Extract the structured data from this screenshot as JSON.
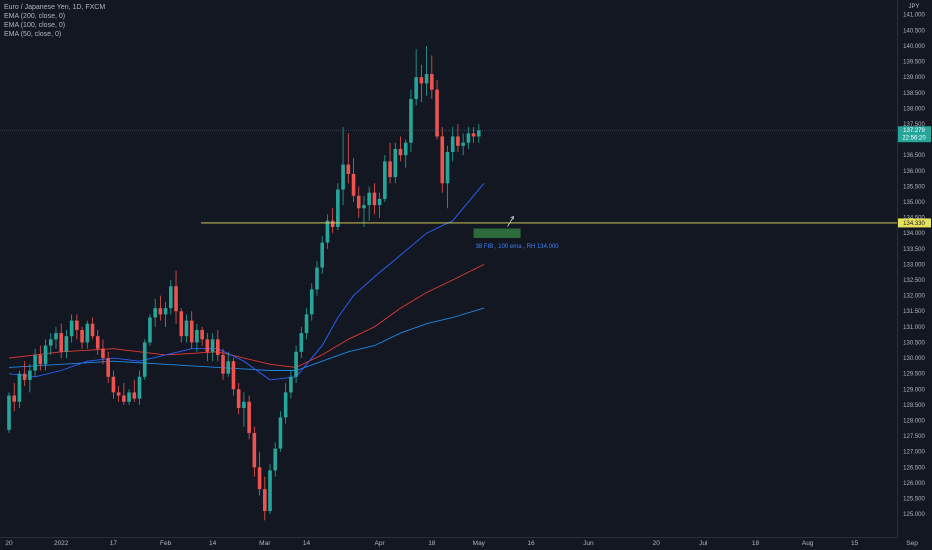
{
  "legend": {
    "symbol": "Euro / Japanese Yen, 1D, FXCM",
    "indicators": [
      "EMA (200, close, 0)",
      "EMA (100, close, 0)",
      "EMA (50, close, 0)"
    ]
  },
  "colors": {
    "background": "#131722",
    "up": "#26a69a",
    "down": "#ef5350",
    "ema50": "#2962ff",
    "ema100": "#e53935",
    "ema200": "#1e88e5",
    "level": "#e6e05a",
    "zone": "#2e6b3a",
    "annotation": "#3b82f6"
  },
  "chart_data": {
    "type": "candlestick",
    "title": "Euro / Japanese Yen, 1D, FXCM",
    "currency": "JPY",
    "ylim": [
      124.6,
      141.2
    ],
    "y_ticks": [
      "141.000",
      "140.500",
      "140.000",
      "139.500",
      "139.000",
      "138.500",
      "138.000",
      "137.500",
      "137.000",
      "136.500",
      "136.000",
      "135.500",
      "135.000",
      "134.500",
      "134.000",
      "133.500",
      "133.000",
      "132.500",
      "132.000",
      "131.500",
      "131.000",
      "130.500",
      "130.000",
      "129.500",
      "129.000",
      "128.500",
      "128.000",
      "127.500",
      "127.000",
      "126.500",
      "126.000",
      "125.500",
      "125.000"
    ],
    "x_ticks": [
      {
        "label": "20",
        "i": 0
      },
      {
        "label": "2022",
        "i": 10
      },
      {
        "label": "17",
        "i": 20
      },
      {
        "label": "Feb",
        "i": 30
      },
      {
        "label": "14",
        "i": 39
      },
      {
        "label": "Mar",
        "i": 49
      },
      {
        "label": "14",
        "i": 57
      },
      {
        "label": "Apr",
        "i": 71
      },
      {
        "label": "18",
        "i": 81
      },
      {
        "label": "May",
        "i": 90
      },
      {
        "label": "16",
        "i": 100
      },
      {
        "label": "Jun",
        "i": 111
      },
      {
        "label": "20",
        "i": 124
      },
      {
        "label": "Jul",
        "i": 133
      },
      {
        "label": "18",
        "i": 143
      },
      {
        "label": "Aug",
        "i": 153
      },
      {
        "label": "15",
        "i": 162
      },
      {
        "label": "Sep",
        "i": 173
      }
    ],
    "ohlc": [
      [
        127.7,
        128.9,
        127.6,
        128.8
      ],
      [
        128.8,
        129.2,
        128.3,
        128.6
      ],
      [
        128.6,
        129.6,
        128.4,
        129.5
      ],
      [
        129.5,
        129.9,
        129.1,
        129.3
      ],
      [
        129.3,
        129.8,
        128.9,
        129.6
      ],
      [
        129.6,
        130.3,
        129.4,
        130.1
      ],
      [
        130.1,
        130.4,
        129.6,
        129.8
      ],
      [
        129.8,
        130.6,
        129.6,
        130.4
      ],
      [
        130.4,
        130.8,
        130.1,
        130.6
      ],
      [
        130.6,
        131.0,
        130.3,
        130.8
      ],
      [
        130.8,
        131.1,
        130.0,
        130.2
      ],
      [
        130.2,
        130.9,
        130.0,
        130.7
      ],
      [
        130.7,
        131.4,
        130.5,
        131.2
      ],
      [
        131.2,
        131.4,
        130.6,
        130.9
      ],
      [
        130.9,
        131.0,
        130.3,
        130.5
      ],
      [
        130.5,
        131.2,
        130.3,
        131.1
      ],
      [
        131.1,
        131.3,
        130.6,
        130.7
      ],
      [
        130.7,
        130.9,
        130.1,
        130.3
      ],
      [
        130.3,
        130.6,
        129.8,
        130.0
      ],
      [
        130.0,
        130.2,
        129.2,
        129.4
      ],
      [
        129.4,
        129.6,
        128.7,
        128.9
      ],
      [
        128.9,
        129.1,
        128.6,
        128.8
      ],
      [
        128.8,
        129.2,
        128.5,
        128.6
      ],
      [
        128.6,
        129.0,
        128.5,
        128.9
      ],
      [
        128.9,
        129.3,
        128.6,
        128.7
      ],
      [
        128.7,
        129.6,
        128.5,
        129.4
      ],
      [
        129.4,
        130.6,
        129.3,
        130.5
      ],
      [
        130.5,
        131.4,
        130.4,
        131.3
      ],
      [
        131.3,
        131.9,
        131.0,
        131.6
      ],
      [
        131.6,
        132.0,
        131.2,
        131.4
      ],
      [
        131.4,
        131.8,
        131.0,
        131.6
      ],
      [
        131.6,
        132.5,
        131.4,
        132.3
      ],
      [
        132.3,
        132.8,
        131.1,
        131.5
      ],
      [
        131.5,
        131.6,
        130.5,
        130.7
      ],
      [
        130.7,
        131.4,
        130.5,
        131.2
      ],
      [
        131.2,
        131.5,
        130.3,
        130.5
      ],
      [
        130.5,
        131.1,
        130.2,
        130.9
      ],
      [
        130.9,
        131.0,
        130.4,
        130.6
      ],
      [
        130.6,
        130.8,
        129.9,
        130.2
      ],
      [
        130.2,
        130.8,
        129.9,
        130.6
      ],
      [
        130.6,
        130.9,
        129.9,
        130.1
      ],
      [
        130.1,
        130.3,
        129.3,
        129.5
      ],
      [
        129.5,
        130.2,
        129.4,
        129.9
      ],
      [
        129.9,
        130.0,
        128.8,
        129.0
      ],
      [
        129.0,
        129.2,
        128.2,
        128.4
      ],
      [
        128.4,
        128.9,
        127.8,
        128.6
      ],
      [
        128.6,
        128.8,
        127.4,
        127.6
      ],
      [
        127.6,
        127.8,
        126.2,
        126.5
      ],
      [
        126.5,
        127.0,
        125.6,
        125.8
      ],
      [
        125.8,
        126.2,
        124.8,
        125.1
      ],
      [
        125.1,
        126.6,
        125.0,
        126.4
      ],
      [
        126.4,
        127.3,
        126.2,
        127.1
      ],
      [
        127.1,
        128.3,
        127.0,
        128.1
      ],
      [
        128.1,
        129.2,
        127.9,
        128.9
      ],
      [
        128.9,
        129.6,
        128.7,
        129.4
      ],
      [
        129.4,
        130.4,
        129.2,
        130.2
      ],
      [
        130.2,
        131.0,
        130.0,
        130.8
      ],
      [
        130.8,
        131.6,
        130.6,
        131.4
      ],
      [
        131.4,
        132.4,
        131.2,
        132.2
      ],
      [
        132.2,
        133.1,
        132.0,
        132.9
      ],
      [
        132.9,
        133.9,
        132.7,
        133.7
      ],
      [
        133.7,
        134.6,
        133.5,
        134.4
      ],
      [
        134.4,
        134.8,
        134.0,
        134.2
      ],
      [
        134.2,
        135.6,
        134.1,
        135.4
      ],
      [
        135.4,
        137.4,
        134.9,
        136.2
      ],
      [
        136.2,
        137.2,
        135.6,
        135.9
      ],
      [
        135.9,
        136.4,
        135.0,
        135.2
      ],
      [
        135.2,
        135.5,
        134.5,
        134.8
      ],
      [
        134.8,
        135.2,
        134.2,
        134.9
      ],
      [
        134.9,
        135.5,
        134.4,
        135.3
      ],
      [
        135.3,
        135.6,
        134.6,
        134.9
      ],
      [
        134.9,
        135.3,
        134.5,
        135.1
      ],
      [
        135.1,
        136.5,
        135.0,
        136.3
      ],
      [
        136.3,
        136.9,
        135.6,
        135.8
      ],
      [
        135.8,
        136.9,
        135.6,
        136.7
      ],
      [
        136.7,
        137.1,
        136.3,
        136.5
      ],
      [
        136.5,
        137.0,
        136.1,
        136.9
      ],
      [
        136.9,
        138.6,
        136.6,
        138.3
      ],
      [
        138.3,
        139.9,
        138.1,
        139.0
      ],
      [
        139.0,
        139.4,
        138.2,
        138.8
      ],
      [
        138.8,
        140.0,
        138.4,
        139.1
      ],
      [
        139.1,
        139.7,
        138.3,
        138.6
      ],
      [
        138.6,
        138.9,
        137.0,
        137.1
      ],
      [
        137.1,
        137.4,
        135.3,
        135.6
      ],
      [
        135.6,
        136.8,
        134.8,
        136.6
      ],
      [
        136.6,
        137.4,
        136.3,
        137.1
      ],
      [
        137.1,
        137.5,
        136.6,
        136.8
      ],
      [
        136.8,
        137.2,
        136.5,
        136.9
      ],
      [
        136.9,
        137.4,
        136.7,
        137.2
      ],
      [
        137.2,
        137.4,
        136.9,
        137.1
      ],
      [
        137.1,
        137.5,
        136.9,
        137.3
      ]
    ],
    "ema50": [
      [
        0,
        129.5
      ],
      [
        5,
        129.4
      ],
      [
        10,
        129.6
      ],
      [
        15,
        129.9
      ],
      [
        20,
        130.0
      ],
      [
        25,
        129.9
      ],
      [
        30,
        130.1
      ],
      [
        35,
        130.3
      ],
      [
        40,
        130.3
      ],
      [
        45,
        129.9
      ],
      [
        50,
        129.3
      ],
      [
        55,
        129.4
      ],
      [
        60,
        130.4
      ],
      [
        63,
        131.3
      ],
      [
        66,
        132.0
      ],
      [
        70,
        132.6
      ],
      [
        75,
        133.3
      ],
      [
        80,
        134.0
      ],
      [
        85,
        134.4
      ],
      [
        91,
        135.6
      ]
    ],
    "ema100": [
      [
        0,
        130.0
      ],
      [
        10,
        130.2
      ],
      [
        20,
        130.3
      ],
      [
        30,
        130.1
      ],
      [
        40,
        130.2
      ],
      [
        50,
        129.8
      ],
      [
        55,
        129.7
      ],
      [
        60,
        130.1
      ],
      [
        65,
        130.6
      ],
      [
        70,
        131.0
      ],
      [
        75,
        131.6
      ],
      [
        80,
        132.1
      ],
      [
        85,
        132.5
      ],
      [
        91,
        133.0
      ]
    ],
    "ema200": [
      [
        0,
        129.7
      ],
      [
        10,
        129.8
      ],
      [
        20,
        129.9
      ],
      [
        30,
        129.8
      ],
      [
        40,
        129.7
      ],
      [
        50,
        129.6
      ],
      [
        55,
        129.6
      ],
      [
        60,
        129.9
      ],
      [
        65,
        130.2
      ],
      [
        70,
        130.4
      ],
      [
        75,
        130.8
      ],
      [
        80,
        131.1
      ],
      [
        85,
        131.3
      ],
      [
        91,
        131.6
      ]
    ],
    "current_price": "137.279",
    "countdown": "22:56:20",
    "level_price": "134.330",
    "level_value": 134.33,
    "zone": {
      "from_i": 89,
      "to_i": 98,
      "low": 133.85,
      "high": 134.15
    },
    "annotation": "38 FIB , 100 ema , RH 134.000"
  }
}
